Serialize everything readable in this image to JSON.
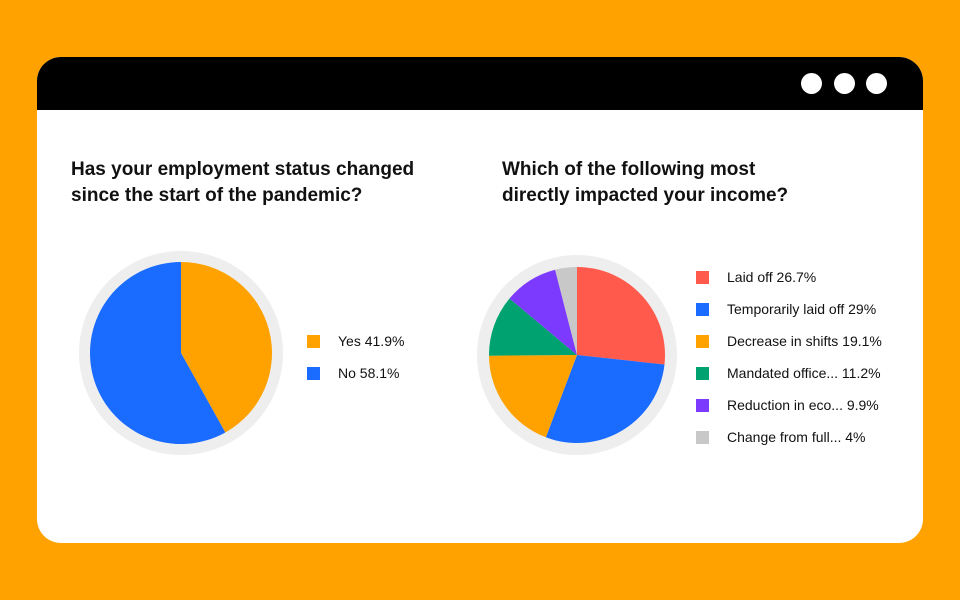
{
  "window": {
    "dots": [
      "window-dot",
      "window-dot",
      "window-dot"
    ]
  },
  "colors": {
    "page_background": "#FFA200",
    "titlebar": "#000000",
    "pie_ring": "#EEEEEE"
  },
  "chart_data": [
    {
      "type": "pie",
      "title": "Has your employment status changed\nsince the start of the pandemic?",
      "legend_position": "right",
      "slices": [
        {
          "label": "Yes 41.9%",
          "name": "Yes",
          "value": 41.9,
          "color": "#FFA200"
        },
        {
          "label": "No 58.1%",
          "name": "No",
          "value": 58.1,
          "color": "#1A6BFF"
        }
      ]
    },
    {
      "type": "pie",
      "title": "Which of the following most\ndirectly impacted your income?",
      "legend_position": "right",
      "slices": [
        {
          "label": "Laid off 26.7%",
          "value": 26.7,
          "color": "#FF5A4C"
        },
        {
          "label": "Temporarily laid off 29%",
          "value": 29,
          "color": "#1A6BFF"
        },
        {
          "label": "Decrease in shifts 19.1%",
          "value": 19.1,
          "color": "#FFA200"
        },
        {
          "label": "Mandated office... 11.2%",
          "value": 11.2,
          "color": "#00A36F"
        },
        {
          "label": "Reduction in eco... 9.9%",
          "value": 9.9,
          "color": "#7C3AFF"
        },
        {
          "label": "Change from full... 4%",
          "value": 4,
          "color": "#C8C8C8"
        }
      ]
    }
  ]
}
